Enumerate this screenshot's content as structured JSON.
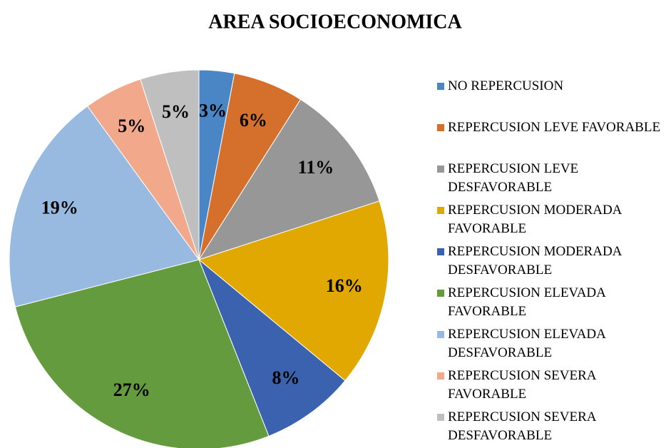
{
  "chart_data": {
    "type": "pie",
    "title": "AREA SOCIOECONOMICA",
    "categories": [
      "NO REPERCUSION",
      "REPERCUSION LEVE FAVORABLE",
      "REPERCUSION LEVE DESFAVORABLE",
      "REPERCUSION MODERADA FAVORABLE",
      "REPERCUSION MODERADA DESFAVORABLE",
      "REPERCUSION ELEVADA FAVORABLE",
      "REPERCUSION ELEVADA DESFAVORABLE",
      "REPERCUSION SEVERA FAVORABLE",
      "REPERCUSION SEVERA DESFAVORABLE"
    ],
    "values": [
      3,
      6,
      11,
      16,
      8,
      27,
      19,
      5,
      5
    ],
    "value_labels": [
      "3%",
      "6%",
      "11%",
      "16%",
      "8%",
      "27%",
      "19%",
      "5%",
      "5%"
    ],
    "colors": [
      "#4a86c6",
      "#d4702c",
      "#979797",
      "#e0a800",
      "#3a62ae",
      "#649b3f",
      "#98b9e0",
      "#f2a88a",
      "#bfbfbf"
    ],
    "legend": "right"
  }
}
